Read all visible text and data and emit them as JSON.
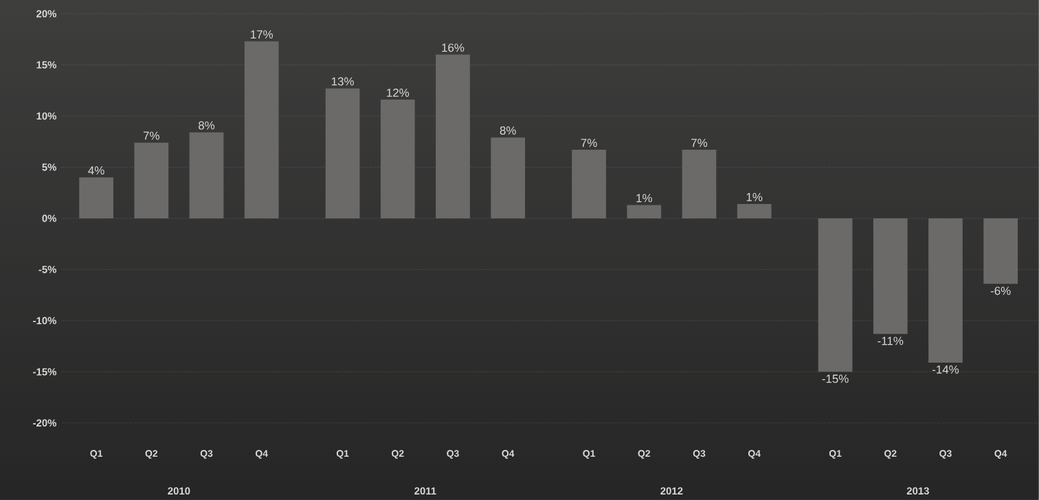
{
  "chart_data": {
    "type": "bar",
    "categories": [
      "Q1",
      "Q2",
      "Q3",
      "Q4",
      "Q1",
      "Q2",
      "Q3",
      "Q4",
      "Q1",
      "Q2",
      "Q3",
      "Q4",
      "Q1",
      "Q2",
      "Q3",
      "Q4"
    ],
    "values": [
      4.0,
      7.4,
      8.4,
      17.3,
      12.7,
      11.6,
      16.0,
      7.9,
      6.7,
      1.3,
      6.7,
      1.4,
      -15.0,
      -11.3,
      -14.1,
      -6.4
    ],
    "value_labels": [
      "4%",
      "7%",
      "8%",
      "17%",
      "13%",
      "12%",
      "16%",
      "8%",
      "7%",
      "1%",
      "7%",
      "1%",
      "-15%",
      "-11%",
      "-14%",
      "-6%"
    ],
    "color": "#6b6a69",
    "ylim": [
      -20,
      20
    ],
    "yticks": [
      {
        "value": -20,
        "label": "-20%"
      },
      {
        "value": -15,
        "label": "-15%"
      },
      {
        "value": -10,
        "label": "-10%"
      },
      {
        "value": -5,
        "label": "-5%"
      },
      {
        "value": 0,
        "label": "0%"
      },
      {
        "value": 5,
        "label": "5%"
      },
      {
        "value": 10,
        "label": "10%"
      },
      {
        "value": 15,
        "label": "15%"
      },
      {
        "value": 20,
        "label": "20%"
      }
    ],
    "grid": "y",
    "annotations": [
      "2010",
      "2011",
      "2012",
      "2013"
    ]
  }
}
